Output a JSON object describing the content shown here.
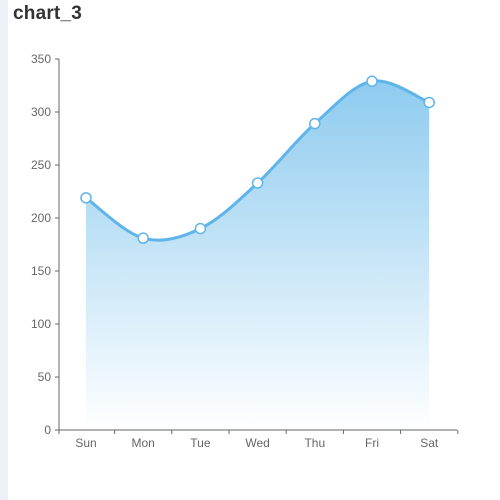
{
  "chart_title": "chart_3",
  "colors": {
    "line": "#5fb4ea",
    "area_top": "#8ecbef",
    "area_bottom": "#ffffff",
    "marker_fill": "#ffffff",
    "axis": "#666666"
  },
  "chart_data": {
    "type": "area",
    "title": "chart_3",
    "xlabel": "",
    "ylabel": "",
    "categories": [
      "Sun",
      "Mon",
      "Tue",
      "Wed",
      "Thu",
      "Fri",
      "Sat"
    ],
    "values": [
      219,
      181,
      190,
      233,
      289,
      329,
      309
    ],
    "ylim": [
      0,
      350
    ],
    "yticks": [
      0,
      50,
      100,
      150,
      200,
      250,
      300,
      350
    ],
    "smooth": true,
    "grid": false,
    "legend": "none"
  }
}
